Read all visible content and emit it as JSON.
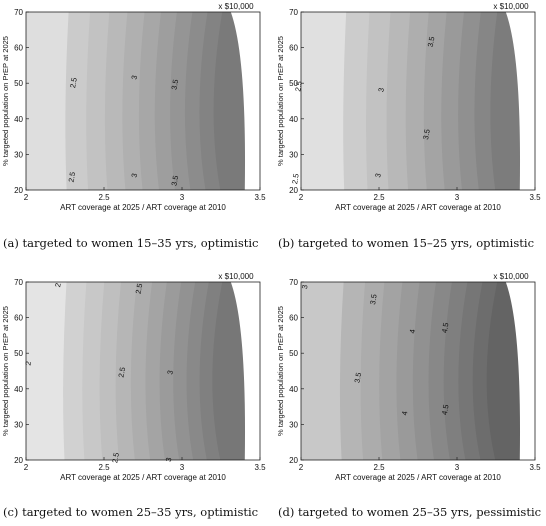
{
  "chart_data": [
    {
      "type": "contour",
      "multiplier_label": "x $10,000",
      "xlabel": "ART coverage at 2025 / ART coverage at 2010",
      "ylabel": "% targeted population on PrEP at 2025",
      "xlim": [
        2,
        3.5
      ],
      "ylim": [
        20,
        70
      ],
      "x_ticks": [
        "2",
        "2.5",
        "3",
        "3.5"
      ],
      "y_ticks": [
        "20",
        "30",
        "40",
        "50",
        "60",
        "70"
      ],
      "contour_labels": [
        {
          "text": "2.5",
          "x": 2.32,
          "y": 50
        },
        {
          "text": "3",
          "x": 2.71,
          "y": 51.5
        },
        {
          "text": "3.5",
          "x": 2.97,
          "y": 49.5
        },
        {
          "text": "2.5",
          "x": 2.31,
          "y": 23.5
        },
        {
          "text": "3",
          "x": 2.71,
          "y": 24
        },
        {
          "text": "3.5",
          "x": 2.97,
          "y": 22.5
        }
      ],
      "caption": "(a) targeted to women 15–35 yrs, optimistic"
    },
    {
      "type": "contour",
      "multiplier_label": "x $10,000",
      "xlabel": "ART coverage at 2025 / ART coverage at 2010",
      "ylabel": "% targeted population on PrEP at 2025",
      "xlim": [
        2,
        3.5
      ],
      "ylim": [
        20,
        70
      ],
      "x_ticks": [
        "2",
        "2.5",
        "3",
        "3.5"
      ],
      "y_ticks": [
        "20",
        "30",
        "40",
        "50",
        "60",
        "70"
      ],
      "contour_labels": [
        {
          "text": "2.5",
          "x": 2.0,
          "y": 49
        },
        {
          "text": "3",
          "x": 2.53,
          "y": 48
        },
        {
          "text": "3.5",
          "x": 2.85,
          "y": 61.5
        },
        {
          "text": "3.5",
          "x": 2.82,
          "y": 35.5
        },
        {
          "text": "3",
          "x": 2.51,
          "y": 24
        },
        {
          "text": "2.5",
          "x": 1.98,
          "y": 23
        }
      ],
      "caption": "(b) targeted to women 15–25 yrs, optimistic"
    },
    {
      "type": "contour",
      "multiplier_label": "x $10,000",
      "xlabel": "ART coverage at 2025 / ART coverage at 2010",
      "ylabel": "% targeted population on PrEP at 2025",
      "xlim": [
        2,
        3.5
      ],
      "ylim": [
        20,
        70
      ],
      "x_ticks": [
        "2",
        "2.5",
        "3",
        "3.5"
      ],
      "y_ticks": [
        "20",
        "30",
        "40",
        "50",
        "60",
        "70"
      ],
      "contour_labels": [
        {
          "text": "2",
          "x": 2.22,
          "y": 69
        },
        {
          "text": "2.5",
          "x": 2.74,
          "y": 68
        },
        {
          "text": "2",
          "x": 2.03,
          "y": 47
        },
        {
          "text": "2.5",
          "x": 2.63,
          "y": 44.5
        },
        {
          "text": "3",
          "x": 2.94,
          "y": 44.5
        },
        {
          "text": "2.5",
          "x": 2.59,
          "y": 20.5
        },
        {
          "text": "3",
          "x": 2.93,
          "y": 20
        }
      ],
      "caption": "(c) targeted to women 25–35 yrs, optimistic"
    },
    {
      "type": "contour",
      "multiplier_label": "x $10,000",
      "xlabel": "ART coverage at 2025 / ART coverage at 2010",
      "ylabel": "% targeted population on PrEP at 2025",
      "xlim": [
        2,
        3.5
      ],
      "ylim": [
        20,
        70
      ],
      "x_ticks": [
        "2",
        "2.5",
        "3",
        "3.5"
      ],
      "y_ticks": [
        "20",
        "30",
        "40",
        "50",
        "60",
        "70"
      ],
      "contour_labels": [
        {
          "text": "3",
          "x": 2.04,
          "y": 68.5
        },
        {
          "text": "3.5",
          "x": 2.48,
          "y": 65
        },
        {
          "text": "4",
          "x": 2.73,
          "y": 56
        },
        {
          "text": "4.5",
          "x": 2.94,
          "y": 57
        },
        {
          "text": "3.5",
          "x": 2.38,
          "y": 43
        },
        {
          "text": "4",
          "x": 2.68,
          "y": 33
        },
        {
          "text": "4.5",
          "x": 2.94,
          "y": 34
        }
      ],
      "caption": "(d) targeted to women 25–35 yrs, pessimistic"
    }
  ]
}
